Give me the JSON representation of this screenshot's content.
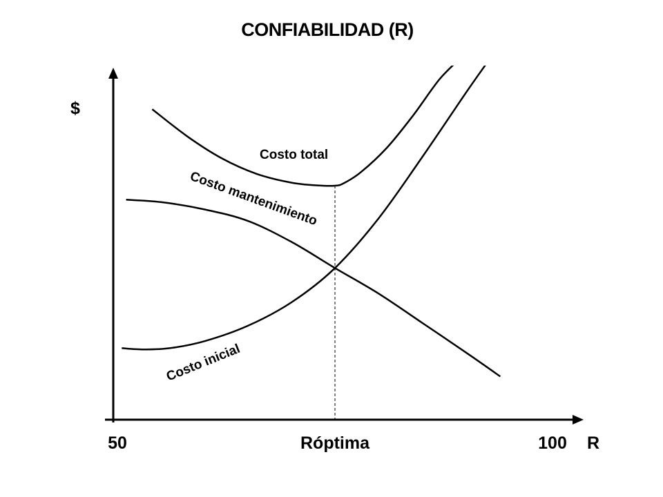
{
  "chart_data": {
    "type": "line",
    "title": "CONFIABILIDAD  (R)",
    "ylabel": "$",
    "xlabel": "R",
    "x_ticks": [
      {
        "value": 50,
        "label": "50"
      },
      {
        "value": 75,
        "label": "Róptima"
      },
      {
        "value": 100,
        "label": "100"
      }
    ],
    "xlim": [
      50,
      100
    ],
    "ylim": [
      0,
      100
    ],
    "optimum_x": 75,
    "series": [
      {
        "name": "Costo total",
        "x": [
          54,
          58,
          62,
          66,
          70,
          73,
          75,
          76,
          78,
          81,
          84,
          87,
          89.5
        ],
        "values": [
          88.6,
          79.7,
          72.4,
          67.3,
          64.4,
          63.5,
          63.4,
          64.2,
          67.9,
          76.0,
          86.6,
          98.4,
          105.6
        ]
      },
      {
        "name": "Costo mantenimiento",
        "x": [
          51,
          55,
          60,
          65,
          70,
          75,
          80,
          85,
          90,
          94
        ],
        "values": [
          58.8,
          58.0,
          55.6,
          51.8,
          44.9,
          36.3,
          27.9,
          18.3,
          8.6,
          0.6
        ]
      },
      {
        "name": "Costo inicial",
        "x": [
          50.5,
          53,
          56,
          60,
          65,
          70,
          75,
          80,
          85,
          90,
          92.5
        ],
        "values": [
          9.9,
          9.5,
          9.9,
          12.2,
          17.3,
          25.0,
          36.3,
          52.6,
          72.7,
          93.8,
          104.0
        ]
      }
    ]
  }
}
